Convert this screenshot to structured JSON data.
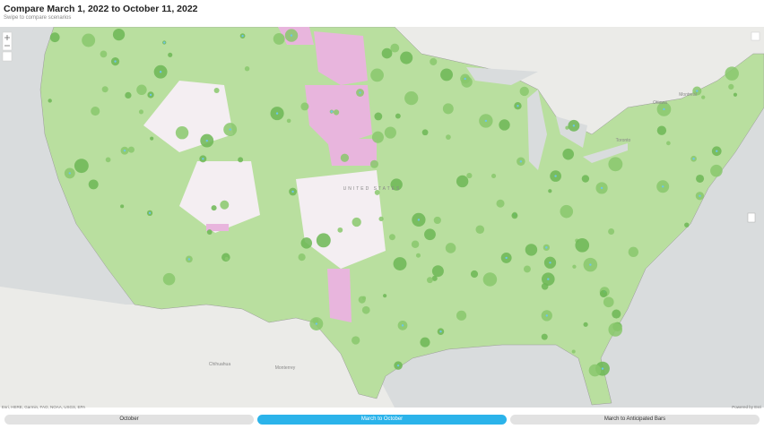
{
  "header": {
    "title": "Compare March 1, 2022 to October 11, 2022",
    "subtitle": "Swipe to compare scenarios"
  },
  "map_labels": [
    "UNITED STATES",
    "Chihuahua",
    "Monterrey",
    "Toronto",
    "Montreal",
    "Ottawa"
  ],
  "attribution": "Esri, HERE, Garmin, FAO, NOAA, USGS, EPA",
  "powered_by": "Powered by Esri",
  "buttons": [
    "October",
    "March to October",
    "March to Anticipated Bars"
  ]
}
